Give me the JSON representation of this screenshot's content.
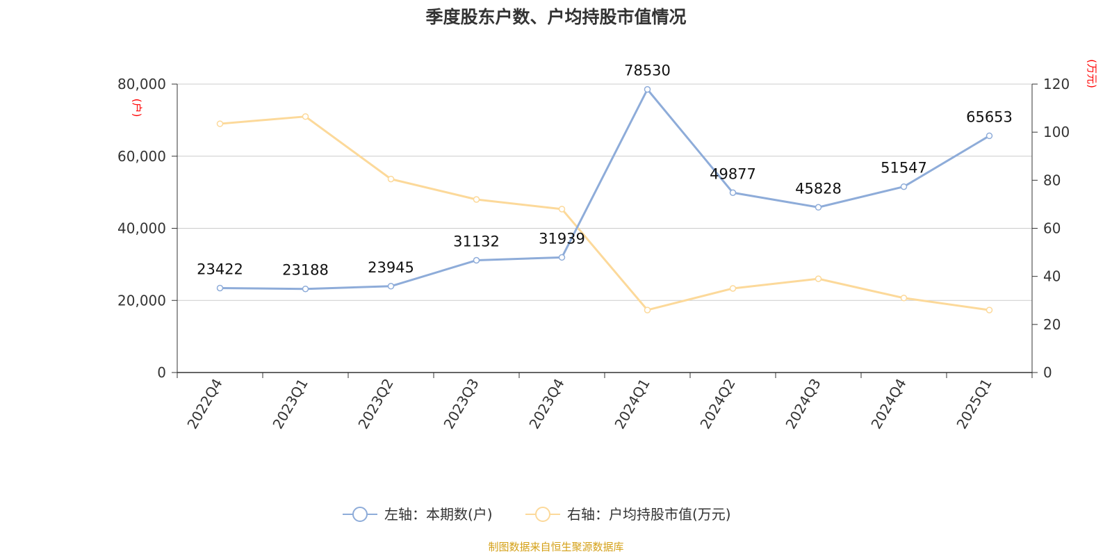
{
  "colors": {
    "left_series": "#8eacd9",
    "right_series": "#fcd99a",
    "unit_label": "#ff0000",
    "source": "#d4a017",
    "grid": "#cccccc",
    "axis": "#333333"
  },
  "chart_data": {
    "type": "line",
    "title": "季度股东户数、户均持股市值情况",
    "categories": [
      "2022Q4",
      "2023Q1",
      "2023Q2",
      "2023Q3",
      "2023Q4",
      "2024Q1",
      "2024Q2",
      "2024Q3",
      "2024Q4",
      "2025Q1"
    ],
    "y_left": {
      "unit": "(户)",
      "ylim": [
        0,
        80000
      ],
      "ticks": [
        0,
        20000,
        40000,
        60000,
        80000
      ],
      "tick_labels": [
        "0",
        "20,000",
        "40,000",
        "60,000",
        "80,000"
      ]
    },
    "y_right": {
      "unit": "(万元)",
      "ylim": [
        0,
        120
      ],
      "ticks": [
        0,
        20,
        40,
        60,
        80,
        100,
        120
      ],
      "tick_labels": [
        "0",
        "20",
        "40",
        "60",
        "80",
        "100",
        "120"
      ]
    },
    "series": [
      {
        "name": "左轴：本期数(户)",
        "axis": "left",
        "values": [
          23422,
          23188,
          23945,
          31132,
          31939,
          78530,
          49877,
          45828,
          51547,
          65653
        ],
        "data_labels": [
          "23422",
          "23188",
          "23945",
          "31132",
          "31939",
          "78530",
          "49877",
          "45828",
          "51547",
          "65653"
        ]
      },
      {
        "name": "右轴：户均持股市值(万元)",
        "axis": "right",
        "values": [
          103.5,
          106.5,
          80.5,
          72,
          68,
          26,
          35,
          39,
          31,
          26
        ]
      }
    ],
    "grid": true,
    "legend_position": "bottom-center",
    "source_note": "制图数据来自恒生聚源数据库"
  }
}
